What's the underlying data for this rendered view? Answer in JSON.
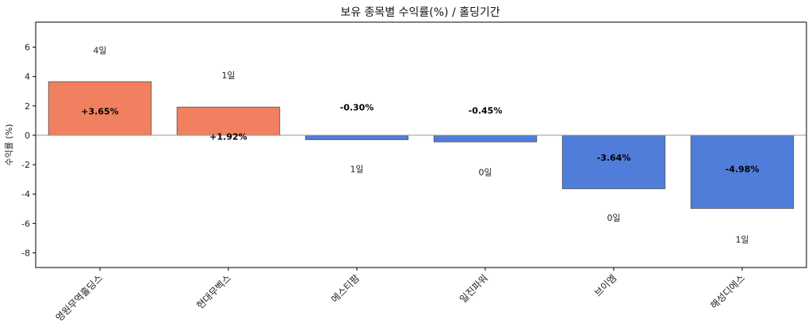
{
  "chart_data": {
    "type": "bar",
    "title": "보유 종목별 수익률(%) / 홀딩기간",
    "xlabel": "",
    "ylabel": "수익률 (%)",
    "ylim": [
      -9,
      7.7
    ],
    "yticks": [
      6,
      4,
      2,
      0,
      -2,
      -4,
      -6,
      -8
    ],
    "ytick_labels": [
      "6",
      "4",
      "2",
      "0",
      "-2",
      "-4",
      "-6",
      "-8"
    ],
    "categories": [
      "영원무역홀딩스",
      "현대무벡스",
      "에스티팜",
      "일진파워",
      "브이엠",
      "해성디에스"
    ],
    "values": [
      3.65,
      1.92,
      -0.3,
      -0.45,
      -3.64,
      -4.98
    ],
    "value_labels": [
      "+3.65%",
      "+1.92%",
      "-0.30%",
      "-0.45%",
      "-3.64%",
      "-4.98%"
    ],
    "holding_labels": [
      "4일",
      "1일",
      "1일",
      "0일",
      "0일",
      "1일"
    ],
    "holding_label_y": [
      5.8,
      4.1,
      -2.3,
      -2.5,
      -5.6,
      -7.1
    ],
    "value_label_y": [
      1.65,
      -0.08,
      1.9,
      1.7,
      -1.5,
      -2.3
    ],
    "colors": {
      "positive": "#f08060",
      "negative": "#4f7dd9",
      "zero_line": "#999999",
      "bar_edge": "#555555"
    },
    "grid": false,
    "legend": "none"
  }
}
